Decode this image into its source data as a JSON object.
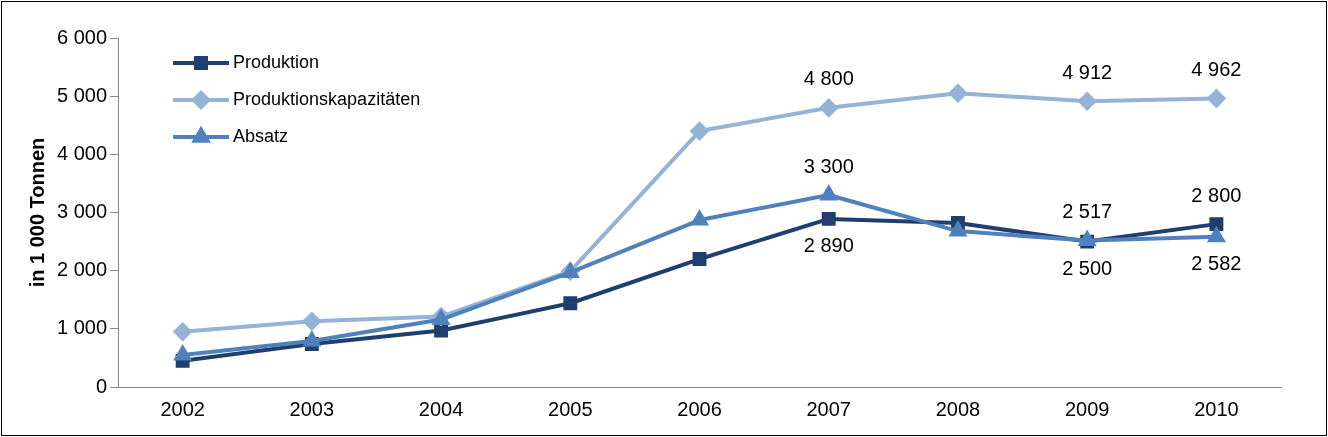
{
  "chart_data": {
    "type": "line",
    "ylabel": "in 1 000 Tonnen",
    "categories": [
      "2002",
      "2003",
      "2004",
      "2005",
      "2006",
      "2007",
      "2008",
      "2009",
      "2010"
    ],
    "series": [
      {
        "name": "Produktion",
        "color": "#1f3f6e",
        "marker": "square",
        "values": [
          450,
          740,
          970,
          1440,
          2200,
          2890,
          2820,
          2500,
          2800
        ],
        "value_labels": [
          null,
          null,
          null,
          null,
          null,
          "2 890",
          null,
          "2 500",
          "2 800"
        ]
      },
      {
        "name": "Produktionskapazitäten",
        "color": "#95b3d7",
        "marker": "diamond",
        "values": [
          950,
          1130,
          1210,
          1990,
          4400,
          4800,
          5050,
          4912,
          4962
        ],
        "value_labels": [
          null,
          null,
          null,
          null,
          null,
          "4 800",
          null,
          "4 912",
          "4 962"
        ]
      },
      {
        "name": "Absatz",
        "color": "#4f81bd",
        "marker": "triangle",
        "values": [
          550,
          790,
          1160,
          1970,
          2870,
          3300,
          2680,
          2517,
          2582
        ],
        "value_labels": [
          null,
          null,
          null,
          null,
          null,
          "3 300",
          null,
          "2 517",
          "2 582"
        ]
      }
    ],
    "ylim": [
      0,
      6000
    ],
    "yticks": [
      {
        "value": 0,
        "label": "0"
      },
      {
        "value": 1000,
        "label": "1 000"
      },
      {
        "value": 2000,
        "label": "2 000"
      },
      {
        "value": 3000,
        "label": "3 000"
      },
      {
        "value": 4000,
        "label": "4 000"
      },
      {
        "value": 5000,
        "label": "5 000"
      },
      {
        "value": 6000,
        "label": "6 000"
      }
    ],
    "grid": false,
    "legend": "top left",
    "line_style": "solid"
  }
}
